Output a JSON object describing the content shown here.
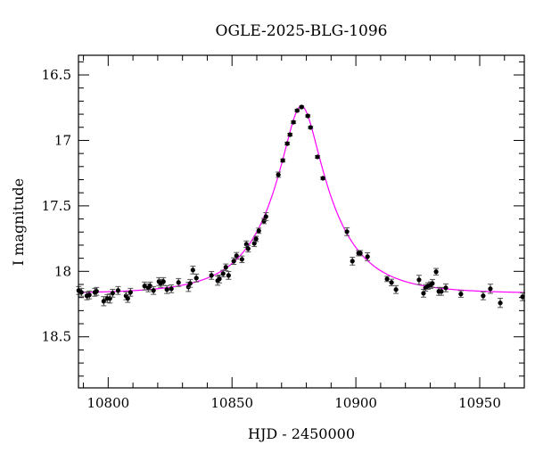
{
  "chart_data": {
    "type": "scatter",
    "title": "OGLE-2025-BLG-1096",
    "xlabel": "HJD - 2450000",
    "ylabel": "I magnitude",
    "xlim": [
      10788,
      10968
    ],
    "ylim": [
      18.89,
      16.35
    ],
    "y_inverted": true,
    "xticks": [
      10800,
      10850,
      10900,
      10950
    ],
    "xtick_labels": [
      "10800",
      "10850",
      "10900",
      "10950"
    ],
    "yticks": [
      16.5,
      17,
      17.5,
      18,
      18.5
    ],
    "ytick_labels": [
      "16.5",
      "17",
      "17.5",
      "18",
      "18.5"
    ],
    "grid": false,
    "legend": "none",
    "colors": {
      "points": "#000000",
      "model": "#ff00ff"
    },
    "points_format": [
      "HJD-2450000",
      "I",
      "err"
    ],
    "points": [
      [
        10788.1,
        18.146,
        0.03
      ],
      [
        10789.2,
        18.16,
        0.03
      ],
      [
        10791.4,
        18.187,
        0.03
      ],
      [
        10792.4,
        18.18,
        0.03
      ],
      [
        10794.6,
        18.16,
        0.03
      ],
      [
        10795.3,
        18.153,
        0.03
      ],
      [
        10798.2,
        18.228,
        0.035
      ],
      [
        10799.6,
        18.207,
        0.03
      ],
      [
        10800.7,
        18.207,
        0.035
      ],
      [
        10801.8,
        18.167,
        0.03
      ],
      [
        10804.0,
        18.146,
        0.03
      ],
      [
        10807.2,
        18.187,
        0.03
      ],
      [
        10807.9,
        18.207,
        0.03
      ],
      [
        10809.0,
        18.16,
        0.03
      ],
      [
        10814.7,
        18.112,
        0.03
      ],
      [
        10816.2,
        18.126,
        0.03
      ],
      [
        10816.9,
        18.112,
        0.03
      ],
      [
        10818.3,
        18.146,
        0.03
      ],
      [
        10820.5,
        18.078,
        0.03
      ],
      [
        10821.2,
        18.092,
        0.03
      ],
      [
        10822.3,
        18.078,
        0.03
      ],
      [
        10823.7,
        18.139,
        0.03
      ],
      [
        10825.5,
        18.133,
        0.03
      ],
      [
        10828.4,
        18.085,
        0.03
      ],
      [
        10832.4,
        18.119,
        0.035
      ],
      [
        10833.1,
        18.092,
        0.03
      ],
      [
        10834.2,
        17.99,
        0.03
      ],
      [
        10835.6,
        18.051,
        0.03
      ],
      [
        10841.7,
        18.031,
        0.03
      ],
      [
        10844.2,
        18.071,
        0.035
      ],
      [
        10844.9,
        18.058,
        0.03
      ],
      [
        10846.4,
        18.017,
        0.025
      ],
      [
        10847.5,
        17.969,
        0.025
      ],
      [
        10848.6,
        18.031,
        0.03
      ],
      [
        10850.7,
        17.922,
        0.025
      ],
      [
        10851.8,
        17.881,
        0.025
      ],
      [
        10854.0,
        17.908,
        0.025
      ],
      [
        10855.8,
        17.793,
        0.025
      ],
      [
        10856.5,
        17.827,
        0.025
      ],
      [
        10859.0,
        17.786,
        0.025
      ],
      [
        10859.7,
        17.752,
        0.02
      ],
      [
        10860.8,
        17.69,
        0.02
      ],
      [
        10862.9,
        17.616,
        0.02
      ],
      [
        10863.7,
        17.582,
        0.03
      ],
      [
        10868.7,
        17.262,
        0.02
      ],
      [
        10870.5,
        17.153,
        0.012
      ],
      [
        10872.3,
        17.024,
        0.01
      ],
      [
        10873.4,
        16.956,
        0.01
      ],
      [
        10874.8,
        16.861,
        0.01
      ],
      [
        10876.3,
        16.772,
        0.008
      ],
      [
        10878.1,
        16.745,
        0.008
      ],
      [
        10880.6,
        16.813,
        0.008
      ],
      [
        10881.7,
        16.901,
        0.008
      ],
      [
        10884.5,
        17.126,
        0.01
      ],
      [
        10886.7,
        17.289,
        0.01
      ],
      [
        10896.4,
        17.697,
        0.03
      ],
      [
        10898.6,
        17.922,
        0.03
      ],
      [
        10901.1,
        17.861,
        0.02
      ],
      [
        10901.8,
        17.861,
        0.02
      ],
      [
        10904.7,
        17.888,
        0.03
      ],
      [
        10912.6,
        18.058,
        0.02
      ],
      [
        10914.4,
        18.085,
        0.025
      ],
      [
        10916.2,
        18.139,
        0.03
      ],
      [
        10925.5,
        18.065,
        0.035
      ],
      [
        10927.3,
        18.167,
        0.03
      ],
      [
        10928.1,
        18.126,
        0.025
      ],
      [
        10929.1,
        18.112,
        0.025
      ],
      [
        10930.2,
        18.105,
        0.025
      ],
      [
        10930.9,
        18.092,
        0.03
      ],
      [
        10932.4,
        18.003,
        0.025
      ],
      [
        10933.5,
        18.153,
        0.03
      ],
      [
        10934.5,
        18.153,
        0.03
      ],
      [
        10936.3,
        18.126,
        0.03
      ],
      [
        10942.4,
        18.173,
        0.025
      ],
      [
        10951.4,
        18.187,
        0.03
      ],
      [
        10954.3,
        18.133,
        0.035
      ],
      [
        10958.3,
        18.241,
        0.035
      ],
      [
        10967.3,
        18.194,
        0.03
      ]
    ],
    "model": {
      "type": "PSPL",
      "t0": 10878,
      "u0": 0.275,
      "tE": 24.3,
      "baseline_mag": 18.17
    }
  }
}
